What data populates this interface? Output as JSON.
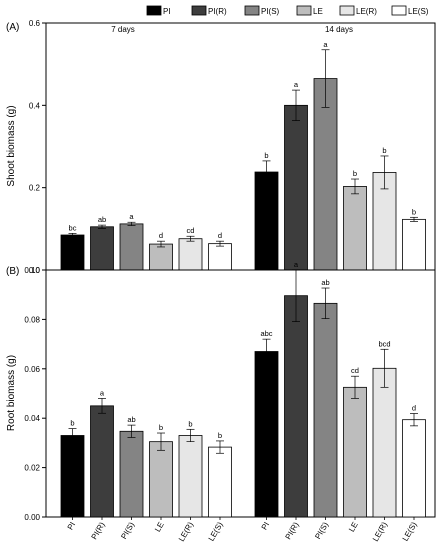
{
  "legend": [
    {
      "label": "PI",
      "color": "#000000"
    },
    {
      "label": "PI(R)",
      "color": "#3d3d3d"
    },
    {
      "label": "PI(S)",
      "color": "#848484"
    },
    {
      "label": "LE",
      "color": "#bdbdbd"
    },
    {
      "label": "LE(R)",
      "color": "#e6e6e6"
    },
    {
      "label": "LE(S)",
      "color": "#ffffff"
    }
  ],
  "group_labels": [
    "7 days",
    "14 days"
  ],
  "chart_data": [
    {
      "type": "bar",
      "panel_label": "(A)",
      "ylabel": "Shoot biomass (g)",
      "ylim": [
        0,
        0.6
      ],
      "yticks": [
        "0.0",
        "0.2",
        "0.4",
        "0.6"
      ],
      "groups": [
        "7 days",
        "14 days"
      ],
      "categories": [
        "PI",
        "PI(R)",
        "PI(S)",
        "LE",
        "LE(R)",
        "LE(S)"
      ],
      "series": [
        {
          "group": "7 days",
          "values": [
            0.085,
            0.105,
            0.112,
            0.063,
            0.076,
            0.064
          ],
          "errors": [
            0.004,
            0.004,
            0.004,
            0.007,
            0.006,
            0.006
          ],
          "letters": [
            "bc",
            "ab",
            "a",
            "d",
            "cd",
            "d"
          ]
        },
        {
          "group": "14 days",
          "values": [
            0.238,
            0.4,
            0.465,
            0.203,
            0.237,
            0.123
          ],
          "errors": [
            0.027,
            0.037,
            0.07,
            0.018,
            0.04,
            0.005
          ],
          "letters": [
            "b",
            "a",
            "a",
            "b",
            "b",
            "b"
          ]
        }
      ]
    },
    {
      "type": "bar",
      "panel_label": "(B)",
      "ylabel": "Root biomass (g)",
      "ylim": [
        0,
        0.1
      ],
      "yticks": [
        "0.00",
        "0.02",
        "0.04",
        "0.06",
        "0.08",
        "0.10"
      ],
      "groups": [
        "7 days",
        "14 days"
      ],
      "categories": [
        "PI",
        "PI(R)",
        "PI(S)",
        "LE",
        "LE(R)",
        "LE(S)"
      ],
      "xticklabels": [
        "PI",
        "PI(R)",
        "PI(S)",
        "LE",
        "LE(R)",
        "LE(S)"
      ],
      "series": [
        {
          "group": "7 days",
          "values": [
            0.033,
            0.045,
            0.0347,
            0.0305,
            0.033,
            0.0283
          ],
          "errors": [
            0.0028,
            0.003,
            0.0025,
            0.0035,
            0.0025,
            0.0025
          ],
          "letters": [
            "b",
            "a",
            "ab",
            "b",
            "b",
            "b"
          ]
        },
        {
          "group": "14 days",
          "values": [
            0.067,
            0.0896,
            0.0865,
            0.0525,
            0.0602,
            0.0394
          ],
          "errors": [
            0.005,
            0.0105,
            0.0062,
            0.0045,
            0.0077,
            0.0025
          ],
          "letters": [
            "abc",
            "a",
            "ab",
            "cd",
            "bcd",
            "d"
          ]
        }
      ]
    }
  ]
}
